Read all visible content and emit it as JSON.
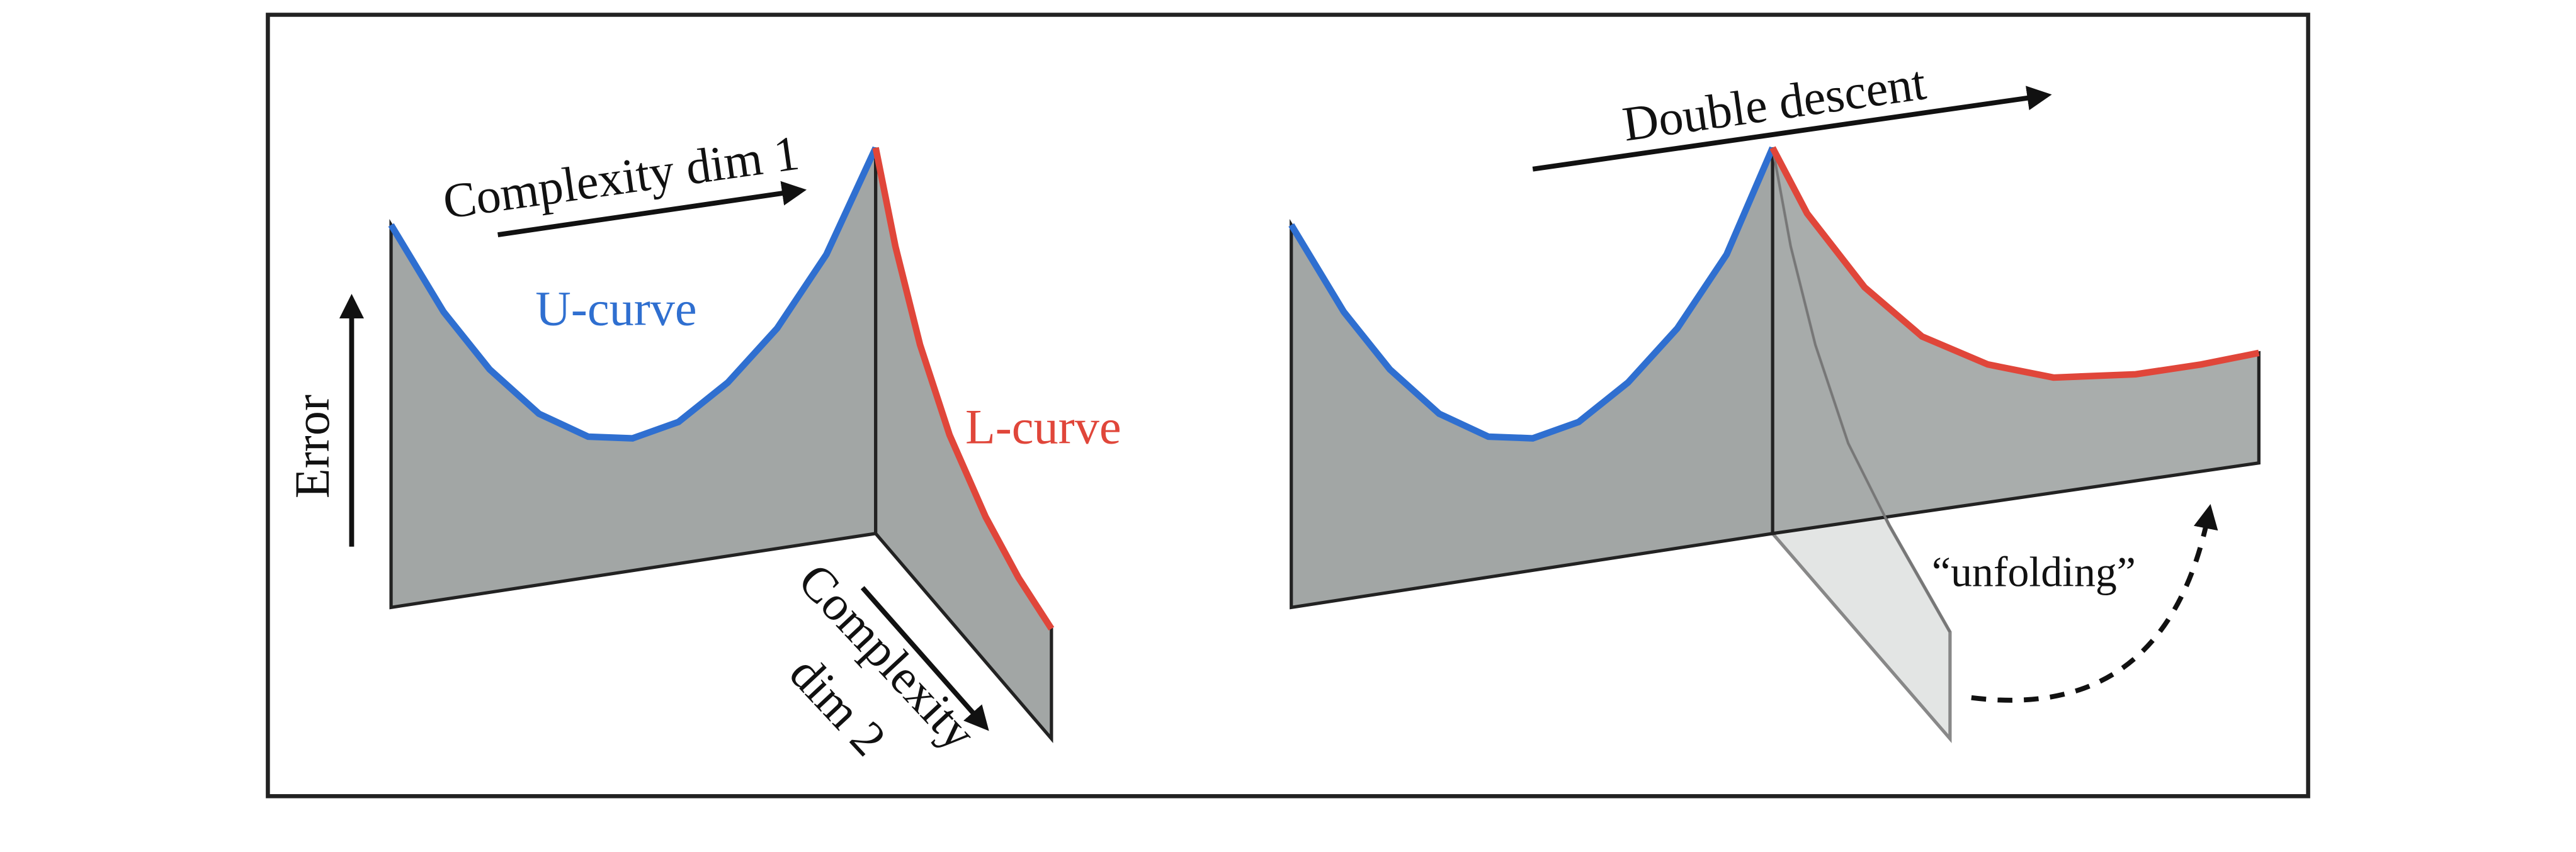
{
  "left_panel": {
    "axis_labels": {
      "complexity_dim_1": "Complexity dim 1",
      "error": "Error",
      "complexity_dim_2": [
        "Complexity",
        "dim 2"
      ]
    },
    "curves": {
      "u_curve": "U-curve",
      "l_curve": "L-curve"
    }
  },
  "right_panel": {
    "arrow_label": "Double descent",
    "annotation": "“unfolding”"
  }
}
